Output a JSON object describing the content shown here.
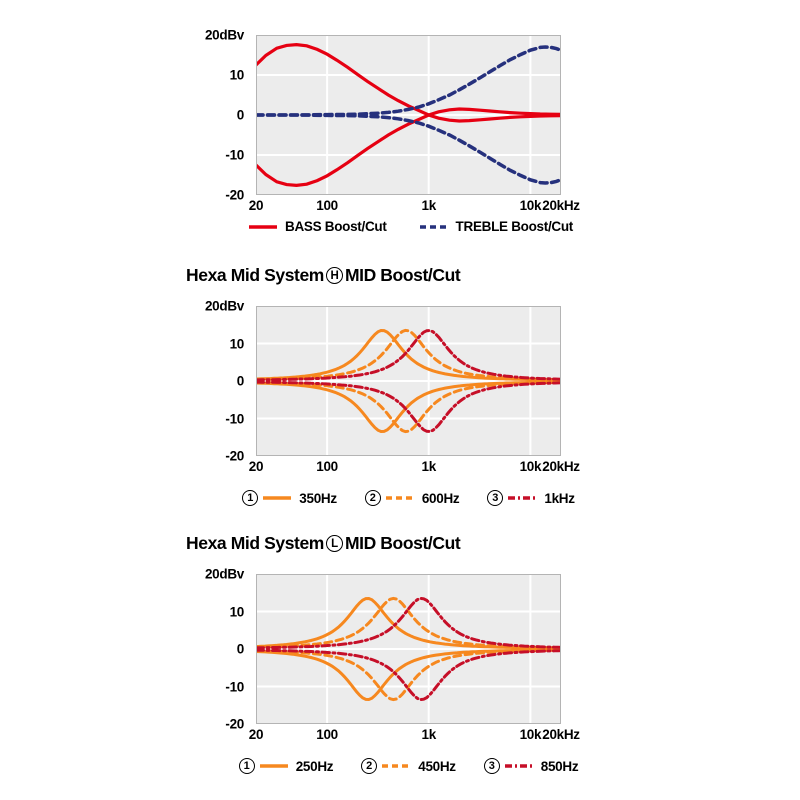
{
  "page": {
    "background": "#ffffff"
  },
  "colors": {
    "bass_red": "#e60012",
    "treble_navy": "#26317d",
    "mid_orange": "#f6881f",
    "mid_crimson": "#c60f28",
    "plot_bg": "#ececec",
    "grid": "#ffffff",
    "frame": "#b4b4b4",
    "text": "#000000"
  },
  "chart_data": [
    {
      "id": "tone-boost-cut",
      "type": "line",
      "title": null,
      "x_axis": {
        "scale": "log",
        "min": 20,
        "max": 20000,
        "unit": "Hz",
        "ticks": [
          {
            "v": 20,
            "label": "20"
          },
          {
            "v": 100,
            "label": "100"
          },
          {
            "v": 1000,
            "label": "1k"
          },
          {
            "v": 10000,
            "label": "10k"
          },
          {
            "v": 20000,
            "label": "20kHz"
          }
        ],
        "grid": [
          100,
          1000,
          10000
        ]
      },
      "y_axis": {
        "min": -20,
        "max": 20,
        "unit": "dBv",
        "ticks": [
          {
            "v": 20,
            "label": "20dBv"
          },
          {
            "v": 10,
            "label": "10"
          },
          {
            "v": 0,
            "label": "0"
          },
          {
            "v": -10,
            "label": "-10"
          },
          {
            "v": -20,
            "label": "-20"
          }
        ],
        "grid": [
          10,
          0,
          -10
        ]
      },
      "series": [
        {
          "name": "BASS Boost/Cut",
          "color": "#e60012",
          "dash": "solid",
          "width": 3.2,
          "mirrored": true,
          "points": [
            [
              20,
              12.5
            ],
            [
              25,
              14.9
            ],
            [
              32,
              16.7
            ],
            [
              40,
              17.4
            ],
            [
              50,
              17.6
            ],
            [
              63,
              17.3
            ],
            [
              80,
              16.4
            ],
            [
              100,
              15.2
            ],
            [
              125,
              13.7
            ],
            [
              160,
              11.9
            ],
            [
              200,
              10.1
            ],
            [
              250,
              8.4
            ],
            [
              320,
              6.6
            ],
            [
              400,
              5.0
            ],
            [
              500,
              3.6
            ],
            [
              630,
              2.3
            ],
            [
              800,
              1.1
            ],
            [
              1000,
              0.0
            ],
            [
              1250,
              -0.8
            ],
            [
              1600,
              -1.3
            ],
            [
              2000,
              -1.5
            ],
            [
              2500,
              -1.4
            ],
            [
              3200,
              -1.2
            ],
            [
              4000,
              -1.0
            ],
            [
              5000,
              -0.8
            ],
            [
              6300,
              -0.6
            ],
            [
              8000,
              -0.45
            ],
            [
              10000,
              -0.35
            ],
            [
              12500,
              -0.25
            ],
            [
              16000,
              -0.2
            ],
            [
              20000,
              -0.15
            ]
          ]
        },
        {
          "name": "TREBLE Boost/Cut",
          "color": "#26317d",
          "dash": "dashed",
          "width": 3.5,
          "mirrored": true,
          "points": [
            [
              20,
              0.0
            ],
            [
              50,
              0.0
            ],
            [
              100,
              0.1
            ],
            [
              160,
              0.15
            ],
            [
              200,
              0.2
            ],
            [
              320,
              0.45
            ],
            [
              400,
              0.65
            ],
            [
              500,
              0.95
            ],
            [
              630,
              1.4
            ],
            [
              800,
              2.0
            ],
            [
              1000,
              2.8
            ],
            [
              1250,
              3.8
            ],
            [
              1600,
              5.0
            ],
            [
              2000,
              6.3
            ],
            [
              2500,
              7.7
            ],
            [
              3200,
              9.3
            ],
            [
              4000,
              10.8
            ],
            [
              5000,
              12.3
            ],
            [
              6300,
              13.8
            ],
            [
              8000,
              15.1
            ],
            [
              10000,
              16.2
            ],
            [
              12500,
              16.9
            ],
            [
              14000,
              17.0
            ],
            [
              16000,
              16.9
            ],
            [
              18000,
              16.6
            ],
            [
              20000,
              16.2
            ]
          ]
        }
      ],
      "legend": [
        {
          "label": "BASS Boost/Cut",
          "color": "#e60012",
          "dash": "solid"
        },
        {
          "label": "TREBLE Boost/Cut",
          "color": "#26317d",
          "dash": "dashed"
        }
      ]
    },
    {
      "id": "hexa-mid-h",
      "type": "line",
      "title": {
        "prefix": "Hexa Mid System",
        "circle": "H",
        "suffix": "MID Boost/Cut"
      },
      "x_axis": {
        "scale": "log",
        "min": 20,
        "max": 20000,
        "unit": "Hz",
        "ticks": [
          {
            "v": 20,
            "label": "20"
          },
          {
            "v": 100,
            "label": "100"
          },
          {
            "v": 1000,
            "label": "1k"
          },
          {
            "v": 10000,
            "label": "10k"
          },
          {
            "v": 20000,
            "label": "20kHz"
          }
        ],
        "grid": [
          100,
          1000,
          10000
        ]
      },
      "y_axis": {
        "min": -20,
        "max": 20,
        "unit": "dBv",
        "ticks": [
          {
            "v": 20,
            "label": "20dBv"
          },
          {
            "v": 10,
            "label": "10"
          },
          {
            "v": 0,
            "label": "0"
          },
          {
            "v": -10,
            "label": "-10"
          },
          {
            "v": -20,
            "label": "-20"
          }
        ],
        "grid": [
          10,
          0,
          -10
        ]
      },
      "series": [
        {
          "name": "350Hz",
          "color": "#f6881f",
          "dash": "solid",
          "width": 3.0,
          "mirrored": true,
          "bell": {
            "center_hz": 350,
            "peak_db": 13.5,
            "k": 16
          }
        },
        {
          "name": "600Hz",
          "color": "#f6881f",
          "dash": "dashed",
          "width": 3.0,
          "mirrored": true,
          "bell": {
            "center_hz": 600,
            "peak_db": 13.5,
            "k": 16
          }
        },
        {
          "name": "1kHz",
          "color": "#c60f28",
          "dash": "dashdot",
          "width": 3.0,
          "mirrored": true,
          "bell": {
            "center_hz": 1000,
            "peak_db": 13.5,
            "k": 16
          }
        }
      ],
      "legend": [
        {
          "num": "1",
          "label": "350Hz",
          "color": "#f6881f",
          "dash": "solid"
        },
        {
          "num": "2",
          "label": "600Hz",
          "color": "#f6881f",
          "dash": "dashed"
        },
        {
          "num": "3",
          "label": "1kHz",
          "color": "#c60f28",
          "dash": "dashdot"
        }
      ]
    },
    {
      "id": "hexa-mid-l",
      "type": "line",
      "title": {
        "prefix": "Hexa Mid System",
        "circle": "L",
        "suffix": "MID Boost/Cut"
      },
      "x_axis": {
        "scale": "log",
        "min": 20,
        "max": 20000,
        "unit": "Hz",
        "ticks": [
          {
            "v": 20,
            "label": "20"
          },
          {
            "v": 100,
            "label": "100"
          },
          {
            "v": 1000,
            "label": "1k"
          },
          {
            "v": 10000,
            "label": "10k"
          },
          {
            "v": 20000,
            "label": "20kHz"
          }
        ],
        "grid": [
          100,
          1000,
          10000
        ]
      },
      "y_axis": {
        "min": -20,
        "max": 20,
        "unit": "dBv",
        "ticks": [
          {
            "v": 20,
            "label": "20dBv"
          },
          {
            "v": 10,
            "label": "10"
          },
          {
            "v": 0,
            "label": "0"
          },
          {
            "v": -10,
            "label": "-10"
          },
          {
            "v": -20,
            "label": "-20"
          }
        ],
        "grid": [
          10,
          0,
          -10
        ]
      },
      "series": [
        {
          "name": "250Hz",
          "color": "#f6881f",
          "dash": "solid",
          "width": 3.0,
          "mirrored": true,
          "bell": {
            "center_hz": 250,
            "peak_db": 13.5,
            "k": 16
          }
        },
        {
          "name": "450Hz",
          "color": "#f6881f",
          "dash": "dashed",
          "width": 3.0,
          "mirrored": true,
          "bell": {
            "center_hz": 450,
            "peak_db": 13.5,
            "k": 16
          }
        },
        {
          "name": "850Hz",
          "color": "#c60f28",
          "dash": "dashdot",
          "width": 3.0,
          "mirrored": true,
          "bell": {
            "center_hz": 850,
            "peak_db": 13.5,
            "k": 16
          }
        }
      ],
      "legend": [
        {
          "num": "1",
          "label": "250Hz",
          "color": "#f6881f",
          "dash": "solid"
        },
        {
          "num": "2",
          "label": "450Hz",
          "color": "#f6881f",
          "dash": "dashed"
        },
        {
          "num": "3",
          "label": "850Hz",
          "color": "#c60f28",
          "dash": "dashdot"
        }
      ]
    }
  ]
}
